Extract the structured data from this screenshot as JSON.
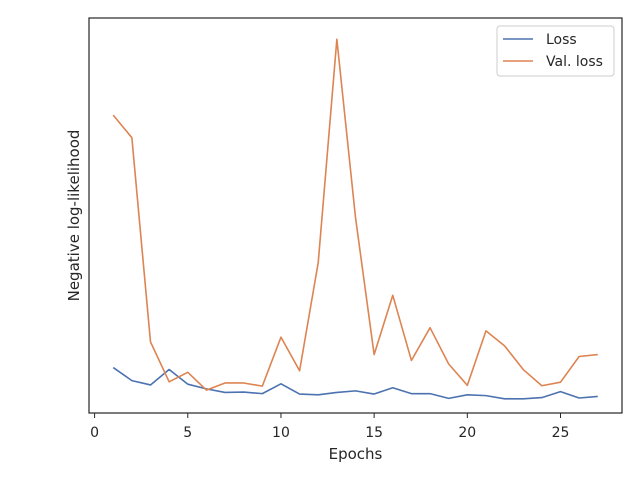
{
  "chart_data": {
    "type": "line",
    "title": "",
    "xlabel": "Epochs",
    "ylabel": "Negative log-likelihood",
    "xlim": [
      -0.3,
      28.3
    ],
    "ylim": [
      0,
      100
    ],
    "xticks": [
      0,
      5,
      10,
      15,
      20,
      25
    ],
    "xtick_labels": [
      "0",
      "5",
      "10",
      "15",
      "20",
      "25"
    ],
    "yticks_visible": false,
    "grid": false,
    "legend": "top-right",
    "x": [
      1,
      2,
      3,
      4,
      5,
      6,
      7,
      8,
      9,
      10,
      11,
      12,
      13,
      14,
      15,
      16,
      17,
      18,
      19,
      20,
      21,
      22,
      23,
      24,
      25,
      26,
      27
    ],
    "series": [
      {
        "name": "Loss",
        "color": "#4c72b0",
        "values": [
          11.5,
          8.2,
          7.1,
          11.0,
          7.3,
          6.1,
          5.2,
          5.3,
          4.9,
          7.4,
          4.8,
          4.6,
          5.2,
          5.6,
          4.8,
          6.4,
          4.9,
          4.9,
          3.7,
          4.6,
          4.4,
          3.6,
          3.6,
          3.9,
          5.4,
          3.8,
          4.2
        ]
      },
      {
        "name": "Val. loss",
        "color": "#dd8452",
        "values": [
          75.4,
          69.7,
          18.0,
          7.9,
          10.3,
          5.8,
          7.6,
          7.6,
          6.8,
          19.2,
          10.7,
          38.1,
          94.6,
          49.5,
          14.8,
          29.8,
          13.3,
          21.6,
          12.4,
          7.0,
          20.8,
          17.0,
          11.0,
          6.9,
          7.8,
          14.3,
          14.8
        ]
      }
    ]
  }
}
